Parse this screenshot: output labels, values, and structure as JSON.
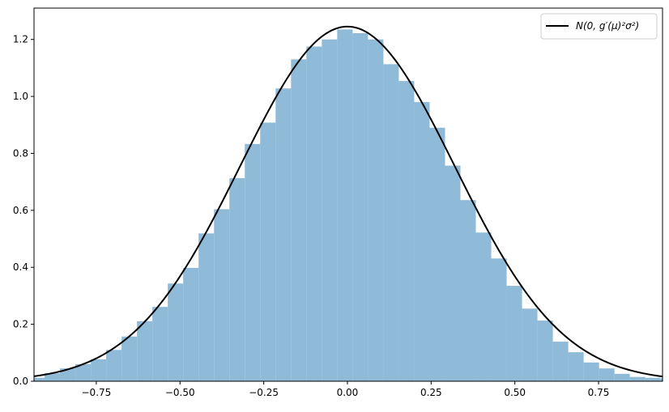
{
  "chart_data": {
    "type": "bar",
    "title": "",
    "xlabel": "",
    "ylabel": "",
    "xlim": [
      -0.936,
      0.941
    ],
    "ylim": [
      0,
      1.31
    ],
    "grid": false,
    "legend_placement": "upper-right",
    "xticks": [
      -0.75,
      -0.5,
      -0.25,
      0.0,
      0.25,
      0.5,
      0.75
    ],
    "xtick_labels": [
      "−0.75",
      "−0.50",
      "−0.25",
      "0.00",
      "0.25",
      "0.50",
      "0.75"
    ],
    "yticks": [
      0.0,
      0.2,
      0.4,
      0.6,
      0.8,
      1.0,
      1.2
    ],
    "ytick_labels": [
      "0.0",
      "0.2",
      "0.4",
      "0.6",
      "0.8",
      "1.0",
      "1.2"
    ],
    "histogram": {
      "bin_start": -0.9505,
      "bin_width": 0.046,
      "density": [
        0.012,
        0.028,
        0.045,
        0.06,
        0.077,
        0.11,
        0.157,
        0.211,
        0.261,
        0.343,
        0.398,
        0.519,
        0.604,
        0.713,
        0.833,
        0.908,
        1.028,
        1.13,
        1.175,
        1.2,
        1.235,
        1.222,
        1.2,
        1.113,
        1.054,
        0.98,
        0.89,
        0.757,
        0.636,
        0.522,
        0.431,
        0.335,
        0.255,
        0.213,
        0.139,
        0.102,
        0.066,
        0.045,
        0.026,
        0.015,
        0.012,
        0.01
      ],
      "color": "#8fbbd9"
    },
    "curve": {
      "name": "N(0, g′(μ)²σ²)",
      "mean": 0,
      "sigma": 0.3204,
      "color": "#000000"
    }
  }
}
